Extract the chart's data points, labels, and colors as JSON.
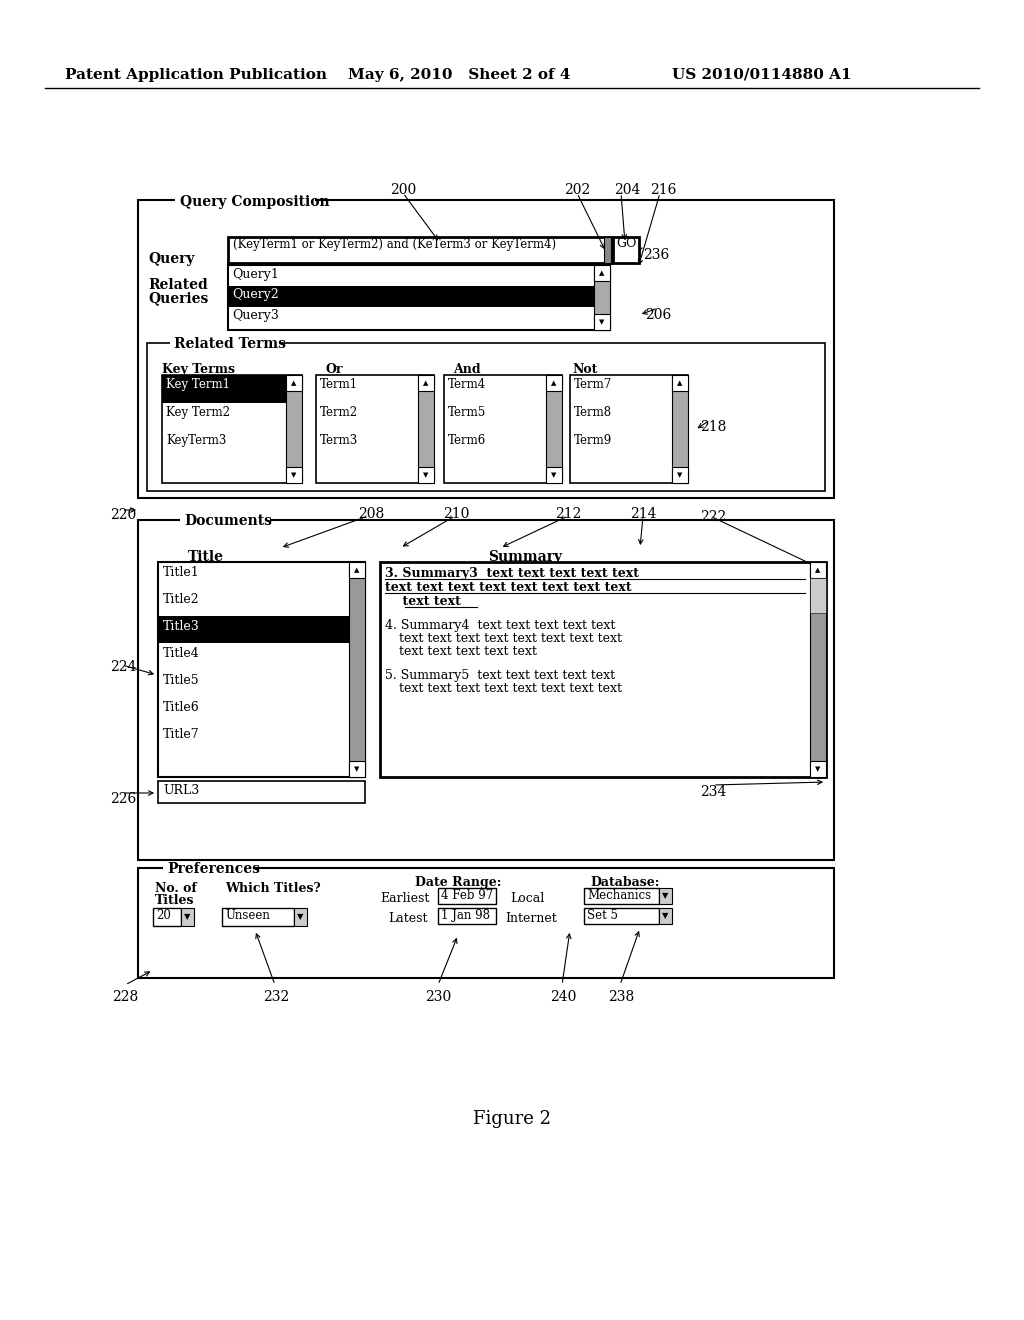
{
  "bg_color": "#ffffff",
  "header_left": "Patent Application Publication",
  "header_mid": "May 6, 2010   Sheet 2 of 4",
  "header_right": "US 2010/0114880 A1",
  "figure_caption": "Figure 2",
  "query_text": "(KeyTerm1 or KeyTerm2) and (KeTerm3 or KeyTerm4)",
  "queries": [
    "Query1",
    "Query2",
    "Query3"
  ],
  "key_terms": [
    "Key Term1",
    "Key Term2",
    "KeyTerm3"
  ],
  "or_terms": [
    "Term1",
    "Term2",
    "Term3"
  ],
  "and_terms": [
    "Term4",
    "Term5",
    "Term6"
  ],
  "not_terms": [
    "Term7",
    "Term8",
    "Term9"
  ],
  "titles": [
    "Title1",
    "Title2",
    "Title3",
    "Title4",
    "Title5",
    "Title6",
    "Title7"
  ],
  "url_text": "URL3",
  "earliest_val": "4 Feb 97",
  "latest_val": "1 Jan 98",
  "no_titles_val": "20",
  "which_titles_val": "Unseen",
  "database_val": "Mechanics",
  "set_val": "Set 5"
}
